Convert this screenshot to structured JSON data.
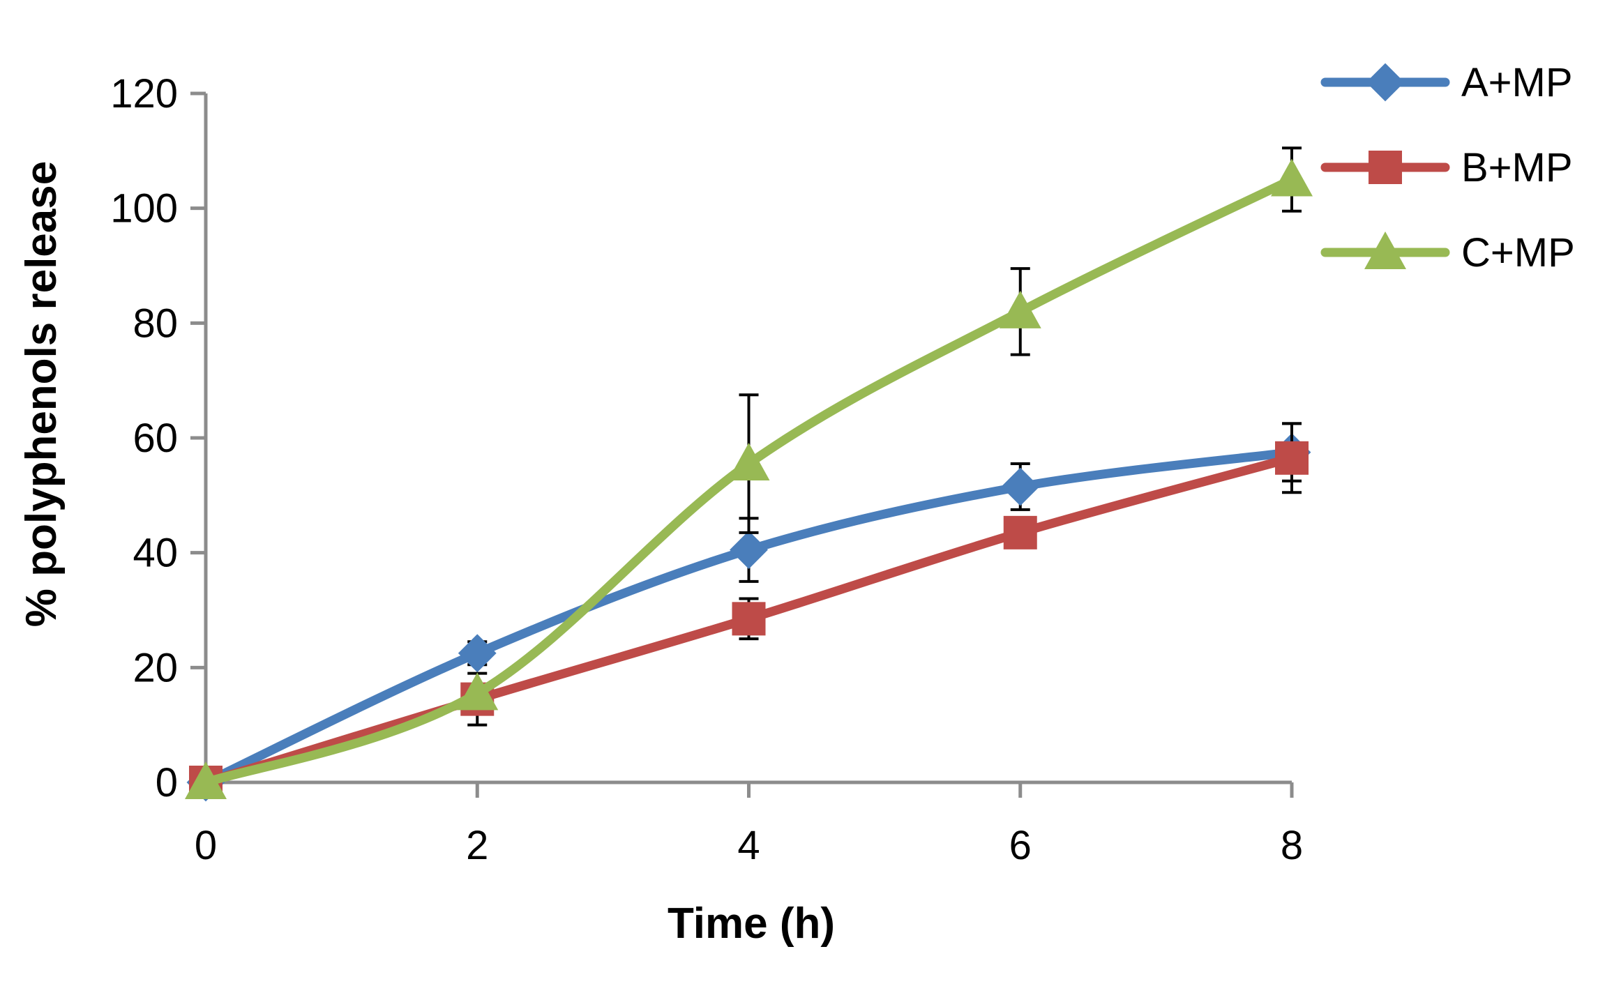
{
  "chart_data": {
    "type": "line",
    "title": "",
    "xlabel": "Time (h)",
    "ylabel": "% polyphenols release",
    "x": [
      0,
      2,
      4,
      6,
      8
    ],
    "xlim": [
      0,
      8
    ],
    "ylim": [
      0,
      120
    ],
    "xticks": [
      0,
      2,
      4,
      6,
      8
    ],
    "yticks": [
      0,
      20,
      40,
      60,
      80,
      100,
      120
    ],
    "grid": false,
    "legend_position": "top-right",
    "series": [
      {
        "name": "A+MP",
        "color": "#4A7EBB",
        "marker": "diamond",
        "values": [
          0,
          22.5,
          40.5,
          51.5,
          57.5
        ],
        "errors": [
          0,
          2,
          5.5,
          4,
          5
        ]
      },
      {
        "name": "B+MP",
        "color": "#BE4B48",
        "marker": "square",
        "values": [
          0,
          14.5,
          28.5,
          43.5,
          56.5
        ],
        "errors": [
          0,
          4.5,
          3.5,
          0,
          6
        ]
      },
      {
        "name": "C+MP",
        "color": "#98B954",
        "marker": "triangle",
        "values": [
          0,
          15.5,
          55.5,
          82,
          105
        ],
        "errors": [
          0,
          0,
          12,
          7.5,
          5.5
        ]
      }
    ]
  }
}
